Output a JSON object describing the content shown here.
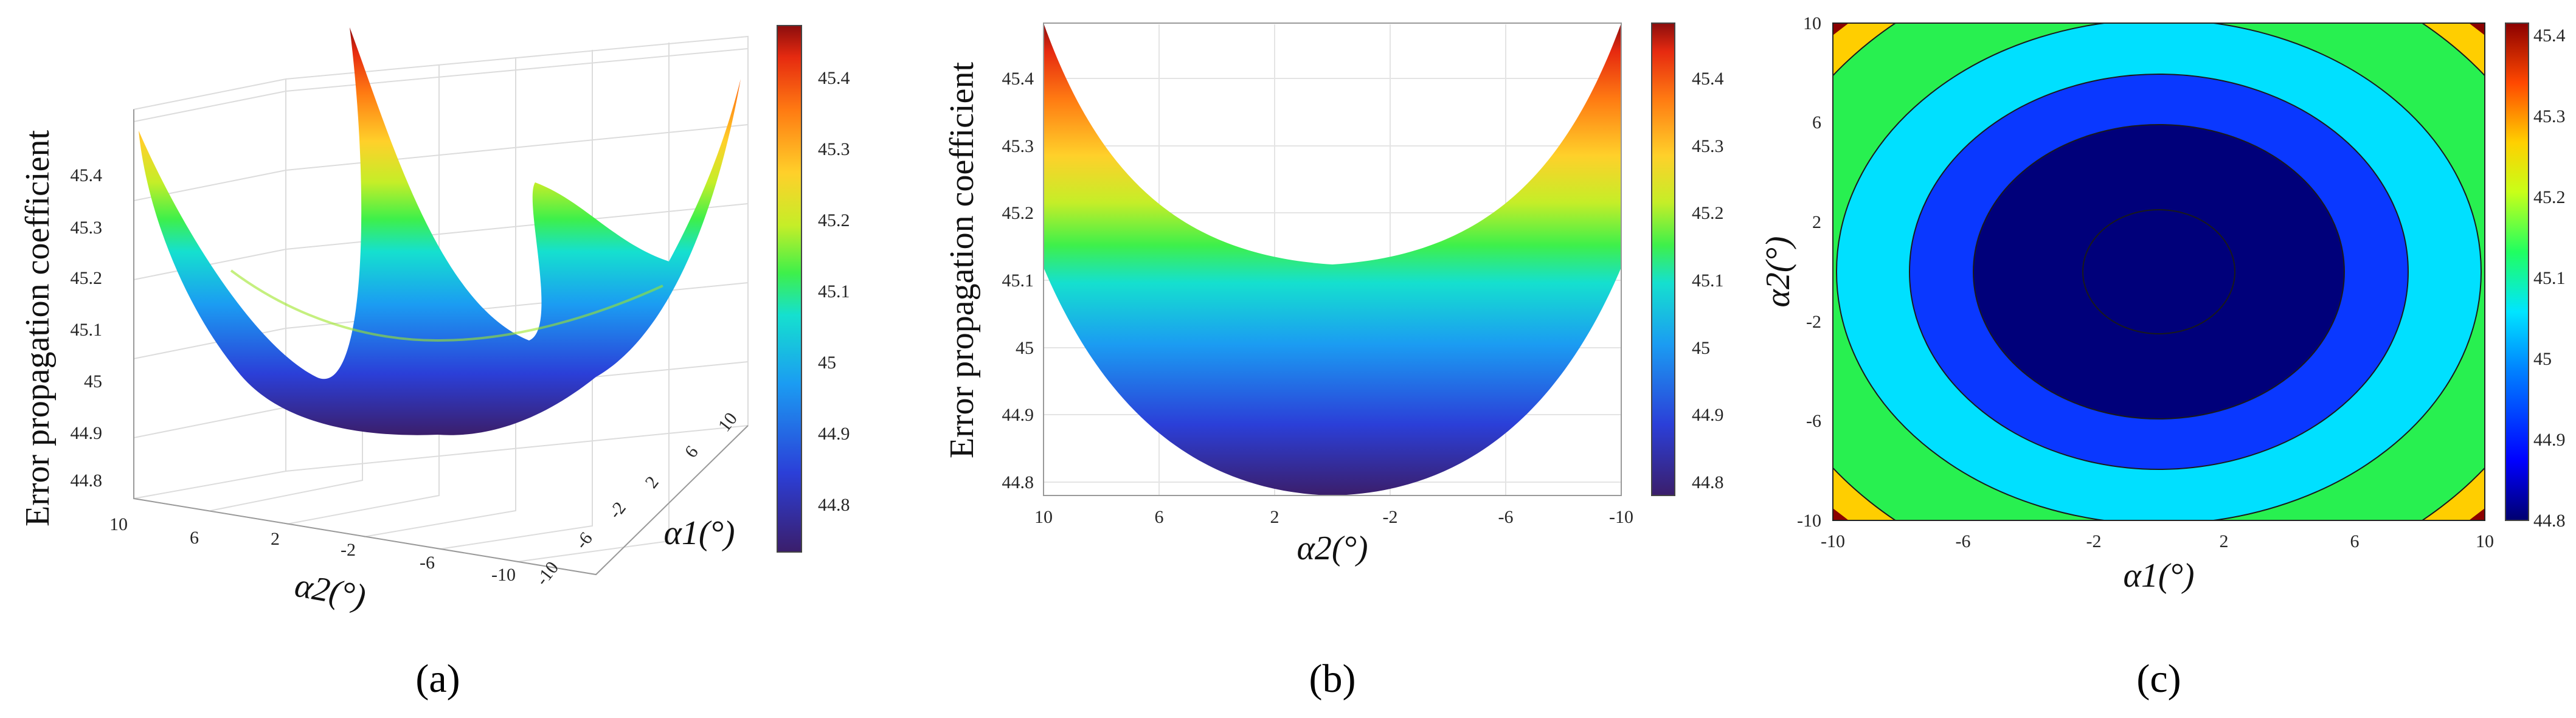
{
  "chart_data": [
    {
      "type": "surface",
      "panel_label": "(a)",
      "xlabel": "α2(°)",
      "ylabel": "α1(°)",
      "zlabel": "Error propagation coefficient",
      "x_ticks": [
        10,
        6,
        2,
        -2,
        -6,
        -10
      ],
      "y_ticks": [
        -10,
        -6,
        -2,
        2,
        6,
        10
      ],
      "z_ticks": [
        44.8,
        44.9,
        45,
        45.1,
        45.2,
        45.3,
        45.4
      ],
      "xlim": [
        -10,
        10
      ],
      "ylim": [
        -10,
        10
      ],
      "zlim": [
        44.78,
        45.48
      ],
      "colorbar_ticks": [
        44.8,
        44.9,
        45,
        45.1,
        45.2,
        45.3,
        45.4
      ],
      "grid": true,
      "colormap": "jet"
    },
    {
      "type": "surface-side-view",
      "panel_label": "(b)",
      "xlabel": "α2(°)",
      "ylabel": "Error propagation coefficient",
      "x_ticks": [
        10,
        6,
        2,
        -2,
        -6,
        -10
      ],
      "y_ticks": [
        44.8,
        44.9,
        45,
        45.1,
        45.2,
        45.3,
        45.4
      ],
      "xlim": [
        10,
        -10
      ],
      "ylim": [
        44.78,
        45.48
      ],
      "colorbar_ticks": [
        44.8,
        44.9,
        45,
        45.1,
        45.2,
        45.3,
        45.4
      ],
      "grid": true,
      "colormap": "jet"
    },
    {
      "type": "contour",
      "panel_label": "(c)",
      "xlabel": "α1(°)",
      "ylabel": "α2(°)",
      "x_ticks": [
        -10,
        -6,
        -2,
        2,
        6,
        10
      ],
      "y_ticks": [
        -10,
        -6,
        -2,
        2,
        6,
        10
      ],
      "xlim": [
        -10,
        10
      ],
      "ylim": [
        -10,
        10
      ],
      "contour_levels": [
        44.8,
        44.9,
        45.0,
        45.1,
        45.2,
        45.3,
        45.4
      ],
      "colorbar_ticks": [
        44.8,
        44.9,
        45,
        45.1,
        45.2,
        45.3,
        45.4
      ],
      "colormap": "jet"
    }
  ]
}
